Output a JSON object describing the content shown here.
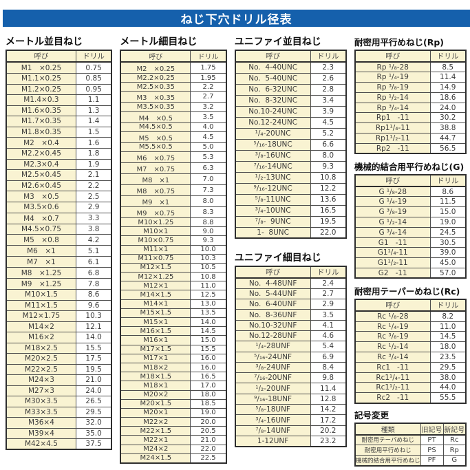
{
  "title": "ねじ下穴ドリル径表",
  "colors": {
    "header_blue": "#1560AC",
    "cell_yellow": "#F9F3D2"
  },
  "col_headers": {
    "name": "呼び",
    "drill": "ドリル"
  },
  "sections": {
    "metric_coarse": {
      "title": "メートル並目ねじ",
      "rows": [
        {
          "n": "M1　×0.25",
          "d": "0.75"
        },
        {
          "n": "M1.1×0.25",
          "d": "0.85"
        },
        {
          "n": "M1.2×0.25",
          "d": "0.95"
        },
        {
          "n": "M1.4×0.3",
          "d": "1.1"
        },
        {
          "n": "M1.6×0.35",
          "d": "1.3"
        },
        {
          "n": "M1.7×0.35",
          "d": "1.4"
        },
        {
          "n": "M1.8×0.35",
          "d": "1.5"
        },
        {
          "n": "M2　×0.4",
          "d": "1.6"
        },
        {
          "n": "M2.2×0.45",
          "d": "1.8"
        },
        {
          "n": "M2.3×0.4",
          "d": "1.9"
        },
        {
          "n": "M2.5×0.45",
          "d": "2.1"
        },
        {
          "n": "M2.6×0.45",
          "d": "2.2"
        },
        {
          "n": "M3　×0.5",
          "d": "2.5"
        },
        {
          "n": "M3.5×0.6",
          "d": "2.9"
        },
        {
          "n": "M4　×0.7",
          "d": "3.3"
        },
        {
          "n": "M4.5×0.75",
          "d": "3.8"
        },
        {
          "n": "M5　×0.8",
          "d": "4.2"
        },
        {
          "n": "M6　×1",
          "d": "5.1"
        },
        {
          "n": "M7　×1",
          "d": "6.1"
        },
        {
          "n": "M8　×1.25",
          "d": "6.8"
        },
        {
          "n": "M9　×1.25",
          "d": "7.8"
        },
        {
          "n": "M10×1.5",
          "d": "8.6"
        },
        {
          "n": "M11×1.5",
          "d": "9.6"
        },
        {
          "n": "M12×1.75",
          "d": "10.3"
        },
        {
          "n": "M14×2",
          "d": "12.1"
        },
        {
          "n": "M16×2",
          "d": "14.0"
        },
        {
          "n": "M18×2.5",
          "d": "15.5"
        },
        {
          "n": "M20×2.5",
          "d": "17.5"
        },
        {
          "n": "M22×2.5",
          "d": "19.5"
        },
        {
          "n": "M24×3",
          "d": "21.0"
        },
        {
          "n": "M27×3",
          "d": "24.0"
        },
        {
          "n": "M30×3.5",
          "d": "26.5"
        },
        {
          "n": "M33×3.5",
          "d": "29.5"
        },
        {
          "n": "M36×4",
          "d": "32.0"
        },
        {
          "n": "M39×4",
          "d": "35.0"
        },
        {
          "n": "M42×4.5",
          "d": "37.5"
        }
      ]
    },
    "metric_fine": {
      "title": "メートル細目ねじ",
      "rows": [
        {
          "n": "M2　×0.25",
          "d": "1.75"
        },
        {
          "n": "M2.2×0.25",
          "d": "1.95"
        },
        {
          "n": "M2.5×0.35",
          "d": "2.2"
        },
        {
          "n": "M3　×0.35",
          "d": "2.7"
        },
        {
          "n": "M3.5×0.35",
          "d": "3.2"
        },
        {
          "n": "M4　×0.5",
          "d": "3.5"
        },
        {
          "n": "M4.5×0.5",
          "d": "4.0"
        },
        {
          "n": "M5　×0.5",
          "d": "4.5"
        },
        {
          "n": "M5.5×0.5",
          "d": "5.0"
        },
        {
          "n": "M6　×0.75",
          "d": "5.3"
        },
        {
          "n": "M7　×0.75",
          "d": "6.3"
        },
        {
          "n": "M8　×1",
          "d": "7.0"
        },
        {
          "n": "M8　×0.75",
          "d": "7.3"
        },
        {
          "n": "M9　×1",
          "d": "8.0"
        },
        {
          "n": "M9　×0.75",
          "d": "8.3"
        },
        {
          "n": "M10×1.25",
          "d": "8.8"
        },
        {
          "n": "M10×1",
          "d": "9.0"
        },
        {
          "n": "M10×0.75",
          "d": "9.3"
        },
        {
          "n": "M11×1",
          "d": "10.0"
        },
        {
          "n": "M11×0.75",
          "d": "10.3"
        },
        {
          "n": "M12×1.5",
          "d": "10.5"
        },
        {
          "n": "M12×1.25",
          "d": "10.8"
        },
        {
          "n": "M12×1",
          "d": "11.0"
        },
        {
          "n": "M14×1.5",
          "d": "12.5"
        },
        {
          "n": "M14×1",
          "d": "13.0"
        },
        {
          "n": "M15×1.5",
          "d": "13.5"
        },
        {
          "n": "M15×1",
          "d": "14.0"
        },
        {
          "n": "M16×1.5",
          "d": "14.5"
        },
        {
          "n": "M16×1",
          "d": "15.0"
        },
        {
          "n": "M17×1.5",
          "d": "15.5"
        },
        {
          "n": "M17×1",
          "d": "16.0"
        },
        {
          "n": "M18×2",
          "d": "16.0"
        },
        {
          "n": "M18×1.5",
          "d": "16.5"
        },
        {
          "n": "M18×1",
          "d": "17.0"
        },
        {
          "n": "M20×2",
          "d": "18.0"
        },
        {
          "n": "M20×1.5",
          "d": "18.5"
        },
        {
          "n": "M20×1",
          "d": "19.0"
        },
        {
          "n": "M22×2",
          "d": "20.0"
        },
        {
          "n": "M22×1.5",
          "d": "20.5"
        },
        {
          "n": "M22×1",
          "d": "21.0"
        },
        {
          "n": "M24×2",
          "d": "22.0"
        },
        {
          "n": "M24×1.5",
          "d": "22.5"
        }
      ]
    },
    "unified_coarse": {
      "title": "ユニファイ並目ねじ",
      "rows": [
        {
          "n": "No.  4-40UNC",
          "d": "2.3"
        },
        {
          "n": "No.  5-40UNC",
          "d": "2.6"
        },
        {
          "n": "No.  6-32UNC",
          "d": "2.8"
        },
        {
          "n": "No.  8-32UNC",
          "d": "3.4"
        },
        {
          "n": "No.10-24UNC",
          "d": "3.9"
        },
        {
          "n": "No.12-24UNC",
          "d": "4.5"
        },
        {
          "n": "¹/₄-20UNC",
          "d": "5.2"
        },
        {
          "n": "⁵/₁₆-18UNC",
          "d": "6.6"
        },
        {
          "n": "³/₈-16UNC",
          "d": "8.0"
        },
        {
          "n": "⁷/₁₆-14UNC",
          "d": "9.3"
        },
        {
          "n": "¹/₂-13UNC",
          "d": "10.8"
        },
        {
          "n": "⁹/₁₆-12UNC",
          "d": "12.2"
        },
        {
          "n": "⁵/₈-11UNC",
          "d": "13.6"
        },
        {
          "n": "³/₄-10UNC",
          "d": "16.5"
        },
        {
          "n": "⁷/₈-  9UNC",
          "d": "19.5"
        },
        {
          "n": "1-  8UNC",
          "d": "22.0"
        }
      ]
    },
    "unified_fine": {
      "title": "ユニファイ細目ねじ",
      "rows": [
        {
          "n": "No.  4-48UNF",
          "d": "2.4"
        },
        {
          "n": "No.  5-44UNF",
          "d": "2.7"
        },
        {
          "n": "No.  6-40UNF",
          "d": "2.9"
        },
        {
          "n": "No.  8-36UNF",
          "d": "3.5"
        },
        {
          "n": "No.10-32UNF",
          "d": "4.1"
        },
        {
          "n": "No.12-28UNF",
          "d": "4.6"
        },
        {
          "n": "¹/₄-28UNF",
          "d": "5.4"
        },
        {
          "n": "⁵/₁₆-24UNF",
          "d": "6.9"
        },
        {
          "n": "³/₈-24UNF",
          "d": "8.4"
        },
        {
          "n": "⁷/₁₆-20UNF",
          "d": "9.8"
        },
        {
          "n": "¹/₂-20UNF",
          "d": "11.4"
        },
        {
          "n": "⁹/₁₆-18UNF",
          "d": "12.8"
        },
        {
          "n": "⁵/₈-18UNF",
          "d": "14.2"
        },
        {
          "n": "³/₄-16UNF",
          "d": "17.2"
        },
        {
          "n": "⁷/₈-14UNF",
          "d": "20.2"
        },
        {
          "n": "1-12UNF",
          "d": "23.2"
        }
      ]
    },
    "rp": {
      "title": "耐密用平行めねじ(Rp)",
      "rows": [
        {
          "n": "Rp ¹/₈-28",
          "d": "8.5"
        },
        {
          "n": "Rp ¹/₄-19",
          "d": "11.4"
        },
        {
          "n": "Rp ³/₈-19",
          "d": "14.9"
        },
        {
          "n": "Rp ¹/₂-14",
          "d": "18.6"
        },
        {
          "n": "Rp ³/₄-14",
          "d": "24.0"
        },
        {
          "n": "Rp1   -11",
          "d": "30.2"
        },
        {
          "n": "Rp1¹/₄-11",
          "d": "38.8"
        },
        {
          "n": "Rp1¹/₂-11",
          "d": "44.7"
        },
        {
          "n": "Rp2   -11",
          "d": "56.5"
        }
      ]
    },
    "g": {
      "title": "機械的結合用平行めねじ(G)",
      "rows": [
        {
          "n": "G ¹/₈-28",
          "d": "8.6"
        },
        {
          "n": "G ¹/₄-19",
          "d": "11.5"
        },
        {
          "n": "G ³/₈-19",
          "d": "15.0"
        },
        {
          "n": "G ¹/₂-14",
          "d": "19.0"
        },
        {
          "n": "G ³/₄-14",
          "d": "24.5"
        },
        {
          "n": "G1   -11",
          "d": "30.5"
        },
        {
          "n": "G1¹/₄-11",
          "d": "39.0"
        },
        {
          "n": "G1¹/₂-11",
          "d": "45.0"
        },
        {
          "n": "G2   -11",
          "d": "57.0"
        }
      ]
    },
    "rc": {
      "title": "耐密用テーパーめねじ(Rc)",
      "rows": [
        {
          "n": "Rc ¹/₈-28",
          "d": "8.2"
        },
        {
          "n": "Rc ¹/₄-19",
          "d": "11.0"
        },
        {
          "n": "Rc ³/₈-19",
          "d": "14.5"
        },
        {
          "n": "Rc ¹/₂-14",
          "d": "18.0"
        },
        {
          "n": "Rc ³/₄-14",
          "d": "23.5"
        },
        {
          "n": "Rc1   -11",
          "d": "29.5"
        },
        {
          "n": "Rc1¹/₄-11",
          "d": "38.0"
        },
        {
          "n": "Rc1¹/₂-11",
          "d": "44.0"
        },
        {
          "n": "Rc2   -11",
          "d": "55.5"
        }
      ]
    },
    "symbol_change": {
      "title": "記号変更",
      "type_h": "種類",
      "old_h": "旧記号",
      "new_h": "新記号",
      "rows": [
        {
          "t": "耐密用テーパめねじ",
          "o": "PT",
          "s": "Rc"
        },
        {
          "t": "耐密用平行めねじ",
          "o": "PS",
          "s": "Rp"
        },
        {
          "t": "機械的結合用平行めねじ",
          "o": "PF",
          "s": "G"
        }
      ]
    }
  }
}
